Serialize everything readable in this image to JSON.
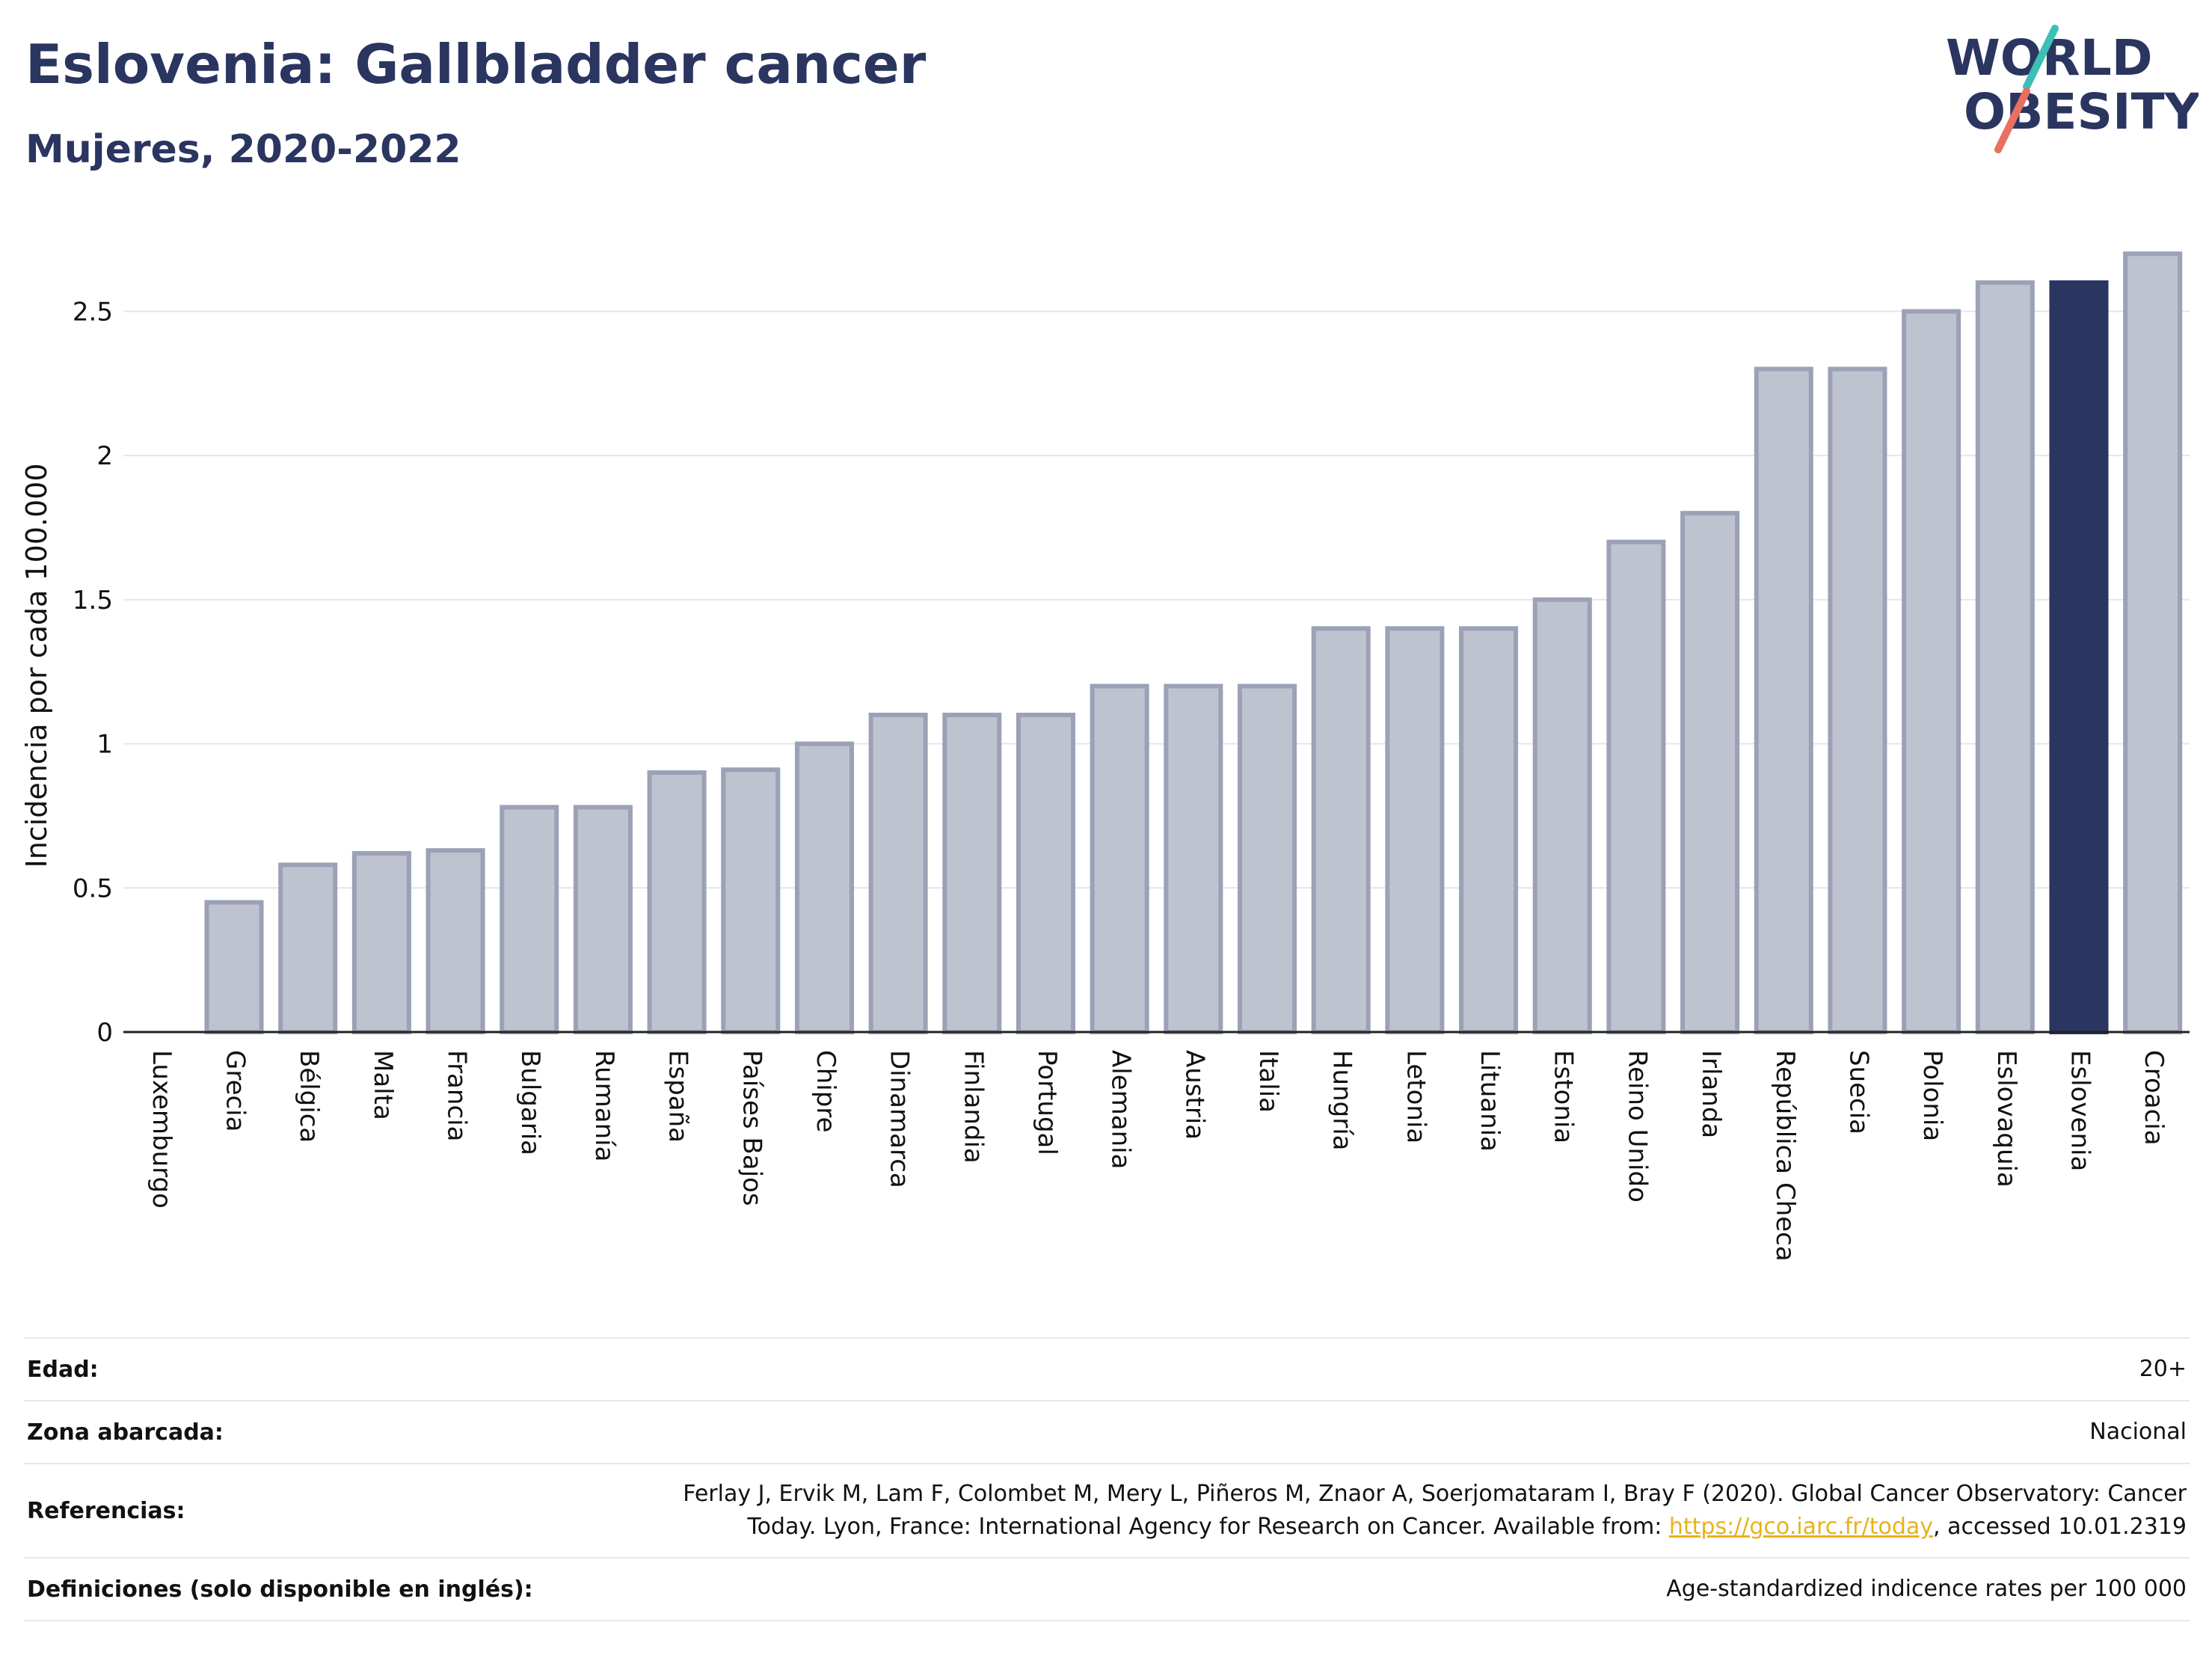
{
  "header": {
    "title": "Eslovenia: Gallbladder cancer",
    "subtitle": "Mujeres, 2020-2022"
  },
  "logo": {
    "line1": "WORLD",
    "line2": "OBESITY"
  },
  "colors": {
    "bar_fill": "#bfc3cf",
    "bar_stroke": "#9ba1b6",
    "highlight": "#2b3561",
    "text": "#2a3560",
    "logo_teal": "#3cbfb4",
    "logo_coral": "#e8705f",
    "link": "#e8b21a"
  },
  "chart_data": {
    "type": "bar",
    "ylabel": "Incidencia por cada 100.000",
    "ylim": [
      0,
      2.75
    ],
    "yticks": [
      0,
      0.5,
      1,
      1.5,
      2,
      2.5
    ],
    "ytick_labels": [
      "0",
      "0.5",
      "1",
      "1.5",
      "2",
      "2.5"
    ],
    "grid": true,
    "highlight": "Eslovenia",
    "categories": [
      "Luxemburgo",
      "Grecia",
      "Bélgica",
      "Malta",
      "Francia",
      "Bulgaria",
      "Rumanía",
      "España",
      "Países Bajos",
      "Chipre",
      "Dinamarca",
      "Finlandia",
      "Portugal",
      "Alemania",
      "Austria",
      "Italia",
      "Hungría",
      "Letonia",
      "Lituania",
      "Estonia",
      "Reino Unido",
      "Irlanda",
      "República Checa",
      "Suecia",
      "Polonia",
      "Eslovaquia",
      "Eslovenia",
      "Croacia"
    ],
    "values": [
      0.0,
      0.45,
      0.58,
      0.62,
      0.63,
      0.78,
      0.78,
      0.9,
      0.91,
      1.0,
      1.1,
      1.1,
      1.1,
      1.2,
      1.2,
      1.2,
      1.4,
      1.4,
      1.4,
      1.5,
      1.7,
      1.8,
      2.3,
      2.3,
      2.5,
      2.6,
      2.6,
      2.7
    ]
  },
  "info": {
    "age_label": "Edad:",
    "age_value": "20+",
    "area_label": "Zona abarcada:",
    "area_value": "Nacional",
    "refs_label": "Referencias:",
    "refs_text_1": "Ferlay J, Ervik M, Lam F, Colombet M, Mery L, Piñeros M, Znaor A, Soerjomataram I, Bray F (2020). Global Cancer Observatory: Cancer Today. Lyon, France: International Agency for Research on Cancer. Available from: ",
    "refs_link": "https://gco.iarc.fr/today",
    "refs_text_2": ", accessed 10.01.2319",
    "defs_label": "Definiciones (solo disponible en inglés):",
    "defs_value": "Age-standardized indicence rates per 100 000"
  }
}
